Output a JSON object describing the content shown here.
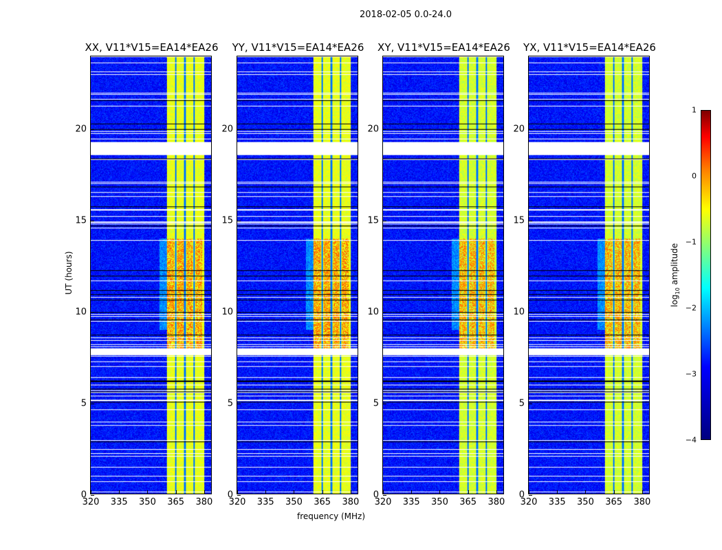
{
  "chart_data": {
    "type": "heatmap",
    "title": "2018-02-05 0.0-24.0",
    "xlabel": "frequency (MHz)",
    "ylabel": "UT (hours)",
    "xlim": [
      320,
      384.4
    ],
    "ylim": [
      0,
      24
    ],
    "xticks": [
      "320",
      "335",
      "350",
      "365",
      "380"
    ],
    "yticks": [
      "0",
      "5",
      "10",
      "15",
      "20"
    ],
    "panels": [
      {
        "title": "XX, V11*V15=EA14*EA26",
        "band_level": -1.0,
        "peak_level": -0.2
      },
      {
        "title": "YY, V11*V15=EA14*EA26",
        "band_level": -1.0,
        "peak_level": -0.2
      },
      {
        "title": "XY, V11*V15=EA14*EA26",
        "band_level": -1.1,
        "peak_level": -0.3
      },
      {
        "title": "YX, V11*V15=EA14*EA26",
        "band_level": -1.1,
        "peak_level": -0.3
      }
    ],
    "features": {
      "background_level": -3.3,
      "band_MHz": [
        360.7,
        380.6
      ],
      "notch_MHz": [
        365.3,
        370.2,
        375.2
      ],
      "strong_hours": [
        8,
        14
      ],
      "flag_gap_hours": [
        [
          18.6,
          19.3
        ],
        [
          7.6,
          8.0
        ]
      ]
    },
    "colorbar": {
      "label": "log10 amplitude",
      "label_main": "log",
      "label_sub": "10",
      "label_rest": " amplitude",
      "range": [
        -4,
        1
      ],
      "ticks": [
        "1",
        "0",
        "−1",
        "−2",
        "−3",
        "−4"
      ],
      "colormap": "jet"
    }
  }
}
